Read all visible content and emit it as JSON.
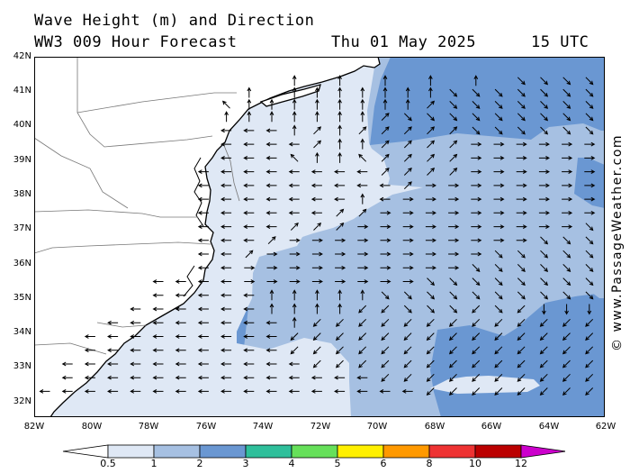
{
  "header": {
    "title": "Wave Height (m) and Direction",
    "model": "WW3 009 Hour Forecast",
    "date": "Thu 01 May 2025",
    "time": "15 UTC"
  },
  "credit": "© www.PassageWeather.com",
  "map": {
    "lat_labels": [
      "42N",
      "41N",
      "40N",
      "39N",
      "38N",
      "37N",
      "36N",
      "35N",
      "34N",
      "33N",
      "32N"
    ],
    "lon_labels": [
      "82W",
      "80W",
      "78W",
      "76W",
      "74W",
      "72W",
      "70W",
      "68W",
      "66W",
      "64W",
      "62W"
    ],
    "extent": {
      "lon_min": -82,
      "lon_max": -62,
      "lat_min": 31.5,
      "lat_max": 42
    },
    "arrow_key": {
      "W": "west",
      "E": "east",
      "N": "north",
      "S": "south",
      "L": "southwest",
      "R": "southeast",
      "U": "northeast",
      "V": "northwest"
    },
    "arrow_rows": [
      {
        "lat": 41.3,
        "dirs": "...........N.N.N.N.N.RRRRRR"
      },
      {
        "lat": 40.95,
        "dirs": ".........N.NNNNNNNRRRRRRRR"
      },
      {
        "lat": 40.6,
        "dirs": "........VNNNNNNNNURRRRRRR"
      },
      {
        "lat": 40.25,
        "dirs": "........NNNNNNNURRRRRRRRR"
      },
      {
        "lat": 39.85,
        "dirs": "........WWWNUNUUUUURRRRRR"
      },
      {
        "lat": 39.45,
        "dirs": "........WWWWUNNUUUUEEEEEE"
      },
      {
        "lat": 39.05,
        "dirs": "........WWWVNNVUUUUEEEEEE"
      },
      {
        "lat": 38.65,
        "dirs": ".......WWWWWWWWUUUUEEEEEE"
      },
      {
        "lat": 38.25,
        "dirs": ".......WWWWWWWWWUEEEEEEEE"
      },
      {
        "lat": 37.85,
        "dirs": ".......WWWWWWWNWEEEEEEEEE"
      },
      {
        "lat": 37.45,
        "dirs": ".......WWWWWWUUEEEEEEEEEE"
      },
      {
        "lat": 37.05,
        "dirs": ".......WWWWUUUEEEEEEEEEER"
      },
      {
        "lat": 36.65,
        "dirs": ".......WWWUEEEEEEEEEEERRR"
      },
      {
        "lat": 36.25,
        "dirs": ".......WWUEEEEEEEEEERRRRR"
      },
      {
        "lat": 35.85,
        "dirs": ".......WWEEEEEEEEEERRRRRR"
      },
      {
        "lat": 35.45,
        "dirs": ".....WWWWEEEEEEEERRRRRRRR"
      },
      {
        "lat": 35.05,
        "dirs": ".....WWWWWNNNNNRRRRRRRRRR"
      },
      {
        "lat": 34.65,
        "dirs": "....WWWWWWNNNNLLRRRLRLSSS"
      },
      {
        "lat": 34.25,
        "dirs": "...WWWWWWWWNLLLLLLLLLLLLL"
      },
      {
        "lat": 33.85,
        "dirs": "..WWWWWWWWWLLLLLLLLLLLLLL"
      },
      {
        "lat": 33.45,
        "dirs": "..WWWWWWWWWLLLLLLLLLLLLLL"
      },
      {
        "lat": 33.05,
        "dirs": ".WWWWWWWWWWWLLLLLLLLLLLLL"
      },
      {
        "lat": 32.65,
        "dirs": ".WWWWWWWWWWWWWWLLLLLLLLLL"
      },
      {
        "lat": 32.25,
        "dirs": "WWWWWWWWWWWWWWWWWLLLLLLLL"
      }
    ]
  },
  "colorbar": {
    "ticks": [
      "0.5",
      "1",
      "2",
      "3",
      "4",
      "5",
      "6",
      "8",
      "10",
      "12"
    ],
    "colors": [
      "#ffffff",
      "#dfe8f5",
      "#a6c0e2",
      "#6a97d2",
      "#2fbf9b",
      "#66e05a",
      "#fff000",
      "#ff9900",
      "#ee3333",
      "#bb0000",
      "#cc00cc"
    ]
  }
}
